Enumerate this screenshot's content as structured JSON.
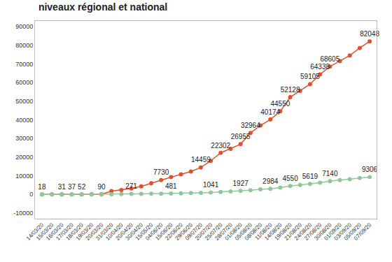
{
  "chart_data": {
    "type": "line",
    "title": "niveaux régional et national",
    "categories": [
      "14/03/20",
      "15/03/20",
      "16/03/20",
      "17/03/20",
      "18/03/20",
      "19/03/20",
      "20/03/20",
      "31/03/20",
      "10/04/20",
      "20/04/20",
      "30/04/20",
      "15/05/20",
      "04/06/20",
      "15/06/20",
      "22/06/20",
      "29/06/20",
      "09/07/20",
      "20/07/20",
      "25/07/20",
      "28/07/20",
      "01/08/20",
      "05/08/20",
      "08/08/20",
      "11/08/20",
      "14/08/20",
      "19/08/20",
      "21/08/20",
      "24/08/20",
      "27/08/20",
      "30/08/20",
      "01/09/20",
      "03/09/20",
      "05/09/20",
      "07/09/20"
    ],
    "series": [
      {
        "color": "#e0502d",
        "marker": "circle",
        "line_style": "solid",
        "values": [
          18,
          25,
          31,
          37,
          52,
          70,
          90,
          1800,
          2400,
          3200,
          4300,
          6000,
          7730,
          9300,
          10800,
          12300,
          14459,
          18000,
          22302,
          24500,
          26955,
          32964,
          37000,
          40174,
          44550,
          52128,
          55500,
          59105,
          64338,
          68605,
          71500,
          74500,
          78500,
          82048
        ],
        "value_labels": [
          "18",
          null,
          "31",
          "37",
          "52",
          null,
          "90",
          null,
          null,
          null,
          null,
          null,
          "7730",
          null,
          null,
          null,
          "14459",
          null,
          "22302",
          null,
          "26955",
          "32964",
          null,
          "40174",
          "44550",
          "52128",
          null,
          "59105",
          "64338",
          "68605",
          null,
          null,
          null,
          "82048"
        ]
      },
      {
        "color": "#8fc79b",
        "marker": "circle",
        "line_style": "solid",
        "values": [
          1,
          1,
          2,
          3,
          5,
          10,
          18,
          100,
          190,
          271,
          330,
          390,
          430,
          481,
          600,
          750,
          900,
          1041,
          1300,
          1600,
          1927,
          2300,
          2700,
          2984,
          3700,
          4550,
          5100,
          5619,
          6300,
          7140,
          7700,
          8200,
          8800,
          9306
        ],
        "value_labels": [
          null,
          null,
          null,
          null,
          null,
          null,
          null,
          null,
          null,
          "271",
          null,
          null,
          null,
          "481",
          null,
          null,
          null,
          "1041",
          null,
          null,
          "1927",
          null,
          null,
          "2984",
          null,
          "4550",
          null,
          "5619",
          null,
          "7140",
          null,
          null,
          null,
          "9306"
        ]
      }
    ],
    "ylim": [
      -13000,
      93000
    ],
    "yticks": [
      -10000,
      0,
      10000,
      20000,
      30000,
      40000,
      50000,
      60000,
      70000,
      80000,
      90000
    ],
    "grid": false,
    "data_labels": true
  }
}
